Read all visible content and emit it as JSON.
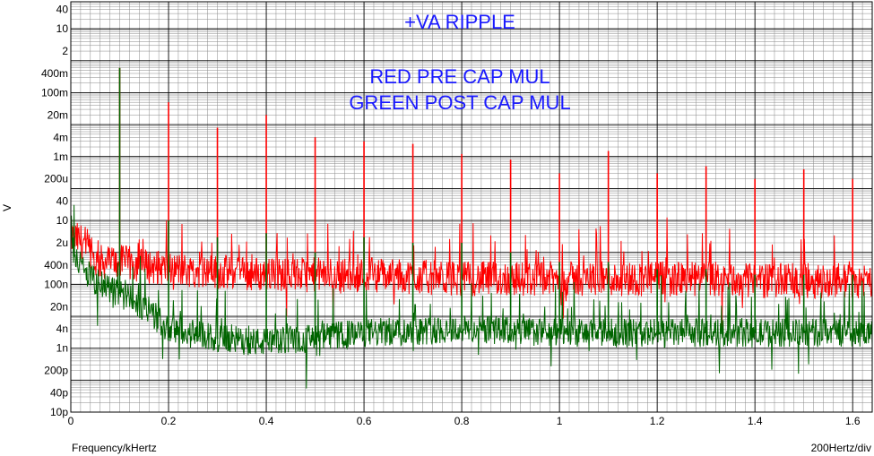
{
  "chart_data": {
    "type": "line",
    "title": "+VA RIPPLE",
    "annotations": [
      "RED  PRE CAP MUL",
      "GREEN POST CAP MUL"
    ],
    "xlabel": "Frequency/kHertz",
    "x_scale_note": "200Hertz/div",
    "ylabel": "V",
    "y_scale": "log",
    "xlim": [
      0,
      1.64
    ],
    "ylim": [
      1e-11,
      70
    ],
    "x_ticks": [
      "0",
      "0.2",
      "0.4",
      "0.6",
      "0.8",
      "1",
      "1.2",
      "1.4",
      "1.6"
    ],
    "y_ticks": [
      "40",
      "10",
      "2",
      "400m",
      "100m",
      "20m",
      "4m",
      "1m",
      "200u",
      "40",
      "10",
      "2u",
      "400n",
      "100n",
      "20n",
      "4n",
      "1n",
      "200p",
      "40p",
      "10p"
    ],
    "grid": true,
    "series": [
      {
        "name": "RED  PRE CAP MUL",
        "color": "#ff0000",
        "noise_floor": [
          [
            0.0,
            3e-06
          ],
          [
            0.03,
            2e-06
          ],
          [
            0.05,
            5e-07
          ],
          [
            0.1,
            5e-07
          ],
          [
            0.2,
            3e-07
          ],
          [
            0.4,
            2e-07
          ],
          [
            0.6,
            2e-07
          ],
          [
            0.8,
            1.5e-07
          ],
          [
            1.0,
            1.5e-07
          ],
          [
            1.2,
            1.5e-07
          ],
          [
            1.4,
            1.3e-07
          ],
          [
            1.64,
            1.3e-07
          ]
        ],
        "peaks": [
          [
            0.1,
            0.6
          ],
          [
            0.2,
            0.05
          ],
          [
            0.3,
            0.008
          ],
          [
            0.4,
            0.02
          ],
          [
            0.5,
            0.004
          ],
          [
            0.6,
            0.003
          ],
          [
            0.7,
            0.0025
          ],
          [
            0.8,
            0.0012
          ],
          [
            0.9,
            0.0008
          ],
          [
            1.0,
            0.0003
          ],
          [
            1.1,
            0.0015
          ],
          [
            1.2,
            0.0003
          ],
          [
            1.3,
            0.0005
          ],
          [
            1.4,
            0.0002
          ],
          [
            1.5,
            0.0004
          ],
          [
            1.6,
            0.0002
          ]
        ]
      },
      {
        "name": "GREEN POST CAP MUL",
        "color": "#006400",
        "noise_floor": [
          [
            0.0,
            2e-06
          ],
          [
            0.03,
            2e-07
          ],
          [
            0.06,
            1e-07
          ],
          [
            0.1,
            5e-08
          ],
          [
            0.15,
            2e-08
          ],
          [
            0.2,
            4e-09
          ],
          [
            0.3,
            2e-09
          ],
          [
            0.4,
            1.5e-09
          ],
          [
            0.6,
            3e-09
          ],
          [
            0.8,
            4e-09
          ],
          [
            1.0,
            3e-09
          ],
          [
            1.2,
            3e-09
          ],
          [
            1.4,
            3e-09
          ],
          [
            1.64,
            3e-09
          ]
        ],
        "peaks": [
          [
            0.1,
            0.6
          ],
          [
            0.2,
            1e-05
          ],
          [
            0.3,
            3e-06
          ],
          [
            0.4,
            4e-06
          ],
          [
            0.5,
            1e-06
          ],
          [
            0.6,
            3e-06
          ],
          [
            0.7,
            2e-06
          ],
          [
            0.8,
            2e-06
          ],
          [
            0.9,
            1e-06
          ],
          [
            1.0,
            5e-07
          ],
          [
            1.1,
            5e-07
          ],
          [
            1.2,
            3e-07
          ],
          [
            1.3,
            3e-07
          ],
          [
            1.4,
            2e-07
          ],
          [
            1.5,
            2e-07
          ],
          [
            1.6,
            2e-07
          ]
        ]
      }
    ]
  }
}
